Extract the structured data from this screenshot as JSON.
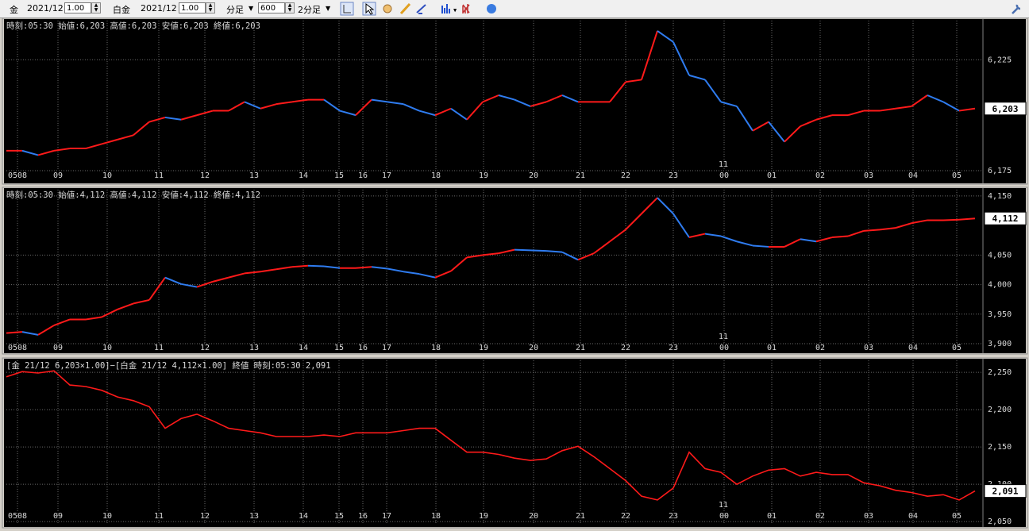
{
  "toolbar": {
    "item1_label": "金",
    "item1_month": "2021/12",
    "item1_qty": "1.00",
    "item2_label": "白金",
    "item2_month": "2021/12",
    "item2_qty": "1.00",
    "period_unit": "分足",
    "bars": "600",
    "interval": "2分足"
  },
  "chart_data": [
    {
      "type": "line",
      "title": "時刻:05:30 始値:6,203 高値:6,203 安値:6,203 終値:6,203",
      "up_color": "#ff1a1a",
      "down_color": "#2f7cf0",
      "x": [
        0,
        20,
        40,
        60,
        80,
        100,
        120,
        140,
        160,
        180,
        200,
        220,
        240,
        260,
        280,
        300,
        320,
        340,
        360,
        380,
        400,
        420,
        440,
        460,
        480,
        500,
        520,
        540,
        560,
        580,
        600,
        620,
        640,
        660,
        680,
        700,
        720,
        740,
        760,
        780,
        800,
        820,
        840,
        860,
        880,
        900,
        920,
        940,
        960,
        980,
        1000,
        1020,
        1040,
        1060,
        1080,
        1100,
        1120,
        1140,
        1160,
        1180,
        1200,
        1220
      ],
      "values": [
        6184,
        6184,
        6182,
        6184,
        6185,
        6185,
        6187,
        6189,
        6191,
        6197,
        6199,
        6198,
        6200,
        6202,
        6202,
        6206,
        6203,
        6205,
        6206,
        6207,
        6207,
        6202,
        6200,
        6207,
        6206,
        6205,
        6202,
        6200,
        6203,
        6198,
        6206,
        6209,
        6207,
        6204,
        6206,
        6209,
        6206,
        6206,
        6206,
        6215,
        6216,
        6238,
        6233,
        6218,
        6216,
        6206,
        6204,
        6193,
        6197,
        6188,
        6195,
        6198,
        6200,
        6200,
        6202,
        6202,
        6203,
        6204,
        6209,
        6206,
        6202,
        6203
      ],
      "last_value_label": "6,203",
      "xlim": [
        0,
        1230
      ],
      "ylim": [
        6175,
        6243
      ],
      "yticks": [
        {
          "value": 6175,
          "label": "6,175"
        },
        {
          "value": 6225,
          "label": "6,225"
        }
      ],
      "xticks": [
        {
          "value": 14,
          "label": "0508"
        },
        {
          "value": 65,
          "label": "09"
        },
        {
          "value": 127,
          "label": "10"
        },
        {
          "value": 192,
          "label": "11"
        },
        {
          "value": 250,
          "label": "12"
        },
        {
          "value": 312,
          "label": "13"
        },
        {
          "value": 374,
          "label": "14"
        },
        {
          "value": 419,
          "label": "15"
        },
        {
          "value": 449,
          "label": "16"
        },
        {
          "value": 479,
          "label": "17"
        },
        {
          "value": 541,
          "label": "18"
        },
        {
          "value": 601,
          "label": "19"
        },
        {
          "value": 664,
          "label": "20"
        },
        {
          "value": 723,
          "label": "21"
        },
        {
          "value": 780,
          "label": "22"
        },
        {
          "value": 840,
          "label": "23"
        },
        {
          "value": 904,
          "label": "00"
        },
        {
          "value": 964,
          "label": "01"
        },
        {
          "value": 1025,
          "label": "02"
        },
        {
          "value": 1086,
          "label": "03"
        },
        {
          "value": 1142,
          "label": "04"
        },
        {
          "value": 1197,
          "label": "05"
        }
      ],
      "marker_label": "11",
      "grid": true
    },
    {
      "type": "line",
      "title": "時刻:05:30 始値:4,112 高値:4,112 安値:4,112 終値:4,112",
      "up_color": "#ff1a1a",
      "down_color": "#2f7cf0",
      "x": [
        0,
        20,
        40,
        60,
        80,
        100,
        120,
        140,
        160,
        180,
        200,
        220,
        240,
        260,
        280,
        300,
        320,
        340,
        360,
        380,
        400,
        420,
        440,
        460,
        480,
        500,
        520,
        540,
        560,
        580,
        600,
        620,
        640,
        660,
        680,
        700,
        720,
        740,
        760,
        780,
        800,
        820,
        840,
        860,
        880,
        900,
        920,
        940,
        960,
        980,
        1000,
        1020,
        1040,
        1060,
        1080,
        1100,
        1120,
        1140,
        1160,
        1180,
        1200,
        1220
      ],
      "values": [
        3918,
        3920,
        3915,
        3931,
        3941,
        3941,
        3945,
        3958,
        3968,
        3974,
        4012,
        4001,
        3996,
        4005,
        4012,
        4019,
        4022,
        4026,
        4030,
        4032,
        4031,
        4028,
        4028,
        4030,
        4027,
        4022,
        4018,
        4012,
        4023,
        4046,
        4050,
        4053,
        4059,
        4058,
        4057,
        4055,
        4042,
        4053,
        4073,
        4093,
        4120,
        4147,
        4120,
        4080,
        4086,
        4082,
        4073,
        4066,
        4064,
        4064,
        4077,
        4073,
        4080,
        4082,
        4091,
        4093,
        4096,
        4104,
        4109,
        4109,
        4110,
        4112
      ],
      "last_value_label": "4,112",
      "xlim": [
        0,
        1230
      ],
      "ylim": [
        3900,
        4162
      ],
      "yticks": [
        {
          "value": 3900,
          "label": "3,900"
        },
        {
          "value": 3950,
          "label": "3,950"
        },
        {
          "value": 4000,
          "label": "4,000"
        },
        {
          "value": 4050,
          "label": "4,050"
        },
        {
          "value": 4150,
          "label": "4,150"
        }
      ],
      "xticks": [
        {
          "value": 14,
          "label": "0508"
        },
        {
          "value": 65,
          "label": "09"
        },
        {
          "value": 127,
          "label": "10"
        },
        {
          "value": 192,
          "label": "11"
        },
        {
          "value": 250,
          "label": "12"
        },
        {
          "value": 312,
          "label": "13"
        },
        {
          "value": 374,
          "label": "14"
        },
        {
          "value": 419,
          "label": "15"
        },
        {
          "value": 449,
          "label": "16"
        },
        {
          "value": 479,
          "label": "17"
        },
        {
          "value": 541,
          "label": "18"
        },
        {
          "value": 601,
          "label": "19"
        },
        {
          "value": 664,
          "label": "20"
        },
        {
          "value": 723,
          "label": "21"
        },
        {
          "value": 780,
          "label": "22"
        },
        {
          "value": 840,
          "label": "23"
        },
        {
          "value": 904,
          "label": "00"
        },
        {
          "value": 964,
          "label": "01"
        },
        {
          "value": 1025,
          "label": "02"
        },
        {
          "value": 1086,
          "label": "03"
        },
        {
          "value": 1142,
          "label": "04"
        },
        {
          "value": 1197,
          "label": "05"
        }
      ],
      "marker_label": "11",
      "grid": true
    },
    {
      "type": "line",
      "title": "[金 21/12 6,203×1.00]−[白金 21/12 4,112×1.00] 終値 時刻:05:30 2,091",
      "color": "#ff1a1a",
      "x": [
        0,
        20,
        40,
        60,
        80,
        100,
        120,
        140,
        160,
        180,
        200,
        220,
        240,
        260,
        280,
        300,
        320,
        340,
        360,
        380,
        400,
        420,
        440,
        460,
        480,
        500,
        520,
        540,
        560,
        580,
        600,
        620,
        640,
        660,
        680,
        700,
        720,
        740,
        760,
        780,
        800,
        820,
        840,
        860,
        880,
        900,
        920,
        940,
        960,
        980,
        1000,
        1020,
        1040,
        1060,
        1080,
        1100,
        1120,
        1140,
        1160,
        1180,
        1200,
        1220
      ],
      "values": [
        2244,
        2251,
        2249,
        2252,
        2233,
        2231,
        2226,
        2217,
        2212,
        2204,
        2175,
        2188,
        2194,
        2185,
        2175,
        2172,
        2169,
        2164,
        2164,
        2164,
        2166,
        2164,
        2169,
        2169,
        2169,
        2172,
        2175,
        2175,
        2159,
        2143,
        2143,
        2140,
        2135,
        2132,
        2134,
        2145,
        2151,
        2137,
        2121,
        2105,
        2084,
        2079,
        2095,
        2143,
        2121,
        2116,
        2100,
        2111,
        2119,
        2121,
        2111,
        2116,
        2113,
        2113,
        2102,
        2098,
        2092,
        2089,
        2084,
        2086,
        2079,
        2091
      ],
      "last_value_label": "2,091",
      "xlim": [
        0,
        1230
      ],
      "ylim": [
        2047,
        2265
      ],
      "yticks": [
        {
          "value": 2050,
          "label": "2,050"
        },
        {
          "value": 2100,
          "label": "2,100"
        },
        {
          "value": 2150,
          "label": "2,150"
        },
        {
          "value": 2200,
          "label": "2,200"
        },
        {
          "value": 2250,
          "label": "2,250"
        }
      ],
      "xticks": [
        {
          "value": 14,
          "label": "0508"
        },
        {
          "value": 65,
          "label": "09"
        },
        {
          "value": 127,
          "label": "10"
        },
        {
          "value": 192,
          "label": "11"
        },
        {
          "value": 250,
          "label": "12"
        },
        {
          "value": 312,
          "label": "13"
        },
        {
          "value": 374,
          "label": "14"
        },
        {
          "value": 419,
          "label": "15"
        },
        {
          "value": 449,
          "label": "16"
        },
        {
          "value": 479,
          "label": "17"
        },
        {
          "value": 541,
          "label": "18"
        },
        {
          "value": 601,
          "label": "19"
        },
        {
          "value": 664,
          "label": "20"
        },
        {
          "value": 723,
          "label": "21"
        },
        {
          "value": 780,
          "label": "22"
        },
        {
          "value": 840,
          "label": "23"
        },
        {
          "value": 904,
          "label": "00"
        },
        {
          "value": 964,
          "label": "01"
        },
        {
          "value": 1025,
          "label": "02"
        },
        {
          "value": 1086,
          "label": "03"
        },
        {
          "value": 1142,
          "label": "04"
        },
        {
          "value": 1197,
          "label": "05"
        }
      ],
      "marker_label": "11",
      "grid": true
    }
  ]
}
